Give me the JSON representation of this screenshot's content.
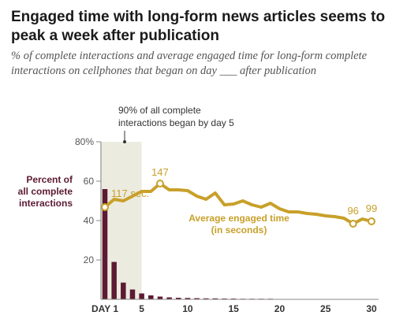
{
  "title": "Engaged time with long-form news articles seems to peak a week after publication",
  "subtitle": "% of complete interactions and average engaged time for long-form complete interactions on cellphones that began on day ___ after publication",
  "chart_data": {
    "type": "bar+line",
    "x_ticks": [
      "DAY 1",
      "5",
      "10",
      "15",
      "20",
      "25",
      "30"
    ],
    "x_tick_values": [
      1,
      5,
      10,
      15,
      20,
      25,
      30
    ],
    "y_ticks": [
      "80%",
      "60",
      "40",
      "20"
    ],
    "y_tick_values": [
      80,
      60,
      40,
      20
    ],
    "ylim": [
      0,
      80
    ],
    "xlim": [
      1,
      30
    ],
    "bar_series": {
      "name": "Percent of all complete interactions",
      "label_lines": [
        "Percent of",
        "all complete",
        "interactions"
      ],
      "color": "#5c1a33",
      "days": [
        1,
        2,
        3,
        4,
        5,
        6,
        7,
        8,
        9,
        10,
        11,
        12,
        13,
        14,
        15,
        16,
        17,
        18,
        19,
        20,
        21,
        22,
        23,
        24,
        25,
        26,
        27,
        28,
        29,
        30
      ],
      "values": [
        56,
        19,
        8.5,
        5,
        3,
        2,
        1.4,
        1,
        0.8,
        0.7,
        0.6,
        0.5,
        0.5,
        0.4,
        0.4,
        0.3,
        0.3,
        0.3,
        0.3,
        0.2,
        0.2,
        0.2,
        0.2,
        0.2,
        0.2,
        0.2,
        0.2,
        0.2,
        0.2,
        0.2
      ]
    },
    "line_series": {
      "name": "Average engaged time (in seconds)",
      "label_lines": [
        "Average engaged time",
        "(in seconds)"
      ],
      "color": "#c8a02a",
      "days": [
        1,
        2,
        3,
        4,
        5,
        6,
        7,
        8,
        9,
        10,
        11,
        12,
        13,
        14,
        15,
        16,
        17,
        18,
        19,
        20,
        21,
        22,
        23,
        24,
        25,
        26,
        27,
        28,
        29,
        30
      ],
      "values": [
        117,
        127,
        125,
        131,
        137,
        137,
        147,
        139,
        139,
        138,
        131,
        127,
        135,
        120,
        121,
        125,
        120,
        117,
        122,
        115,
        111,
        111,
        109,
        108,
        106,
        105,
        103,
        96,
        102,
        99
      ]
    },
    "data_labels": [
      {
        "day": 1,
        "text": "117 sec."
      },
      {
        "day": 7,
        "text": "147"
      },
      {
        "day": 28,
        "text": "96"
      },
      {
        "day": 30,
        "text": "99"
      }
    ],
    "annotation": {
      "lines": [
        "90% of all complete",
        "interactions began by day 5"
      ],
      "shade_from": 1,
      "shade_to": 5,
      "shade_color": "#ecebe0"
    }
  }
}
